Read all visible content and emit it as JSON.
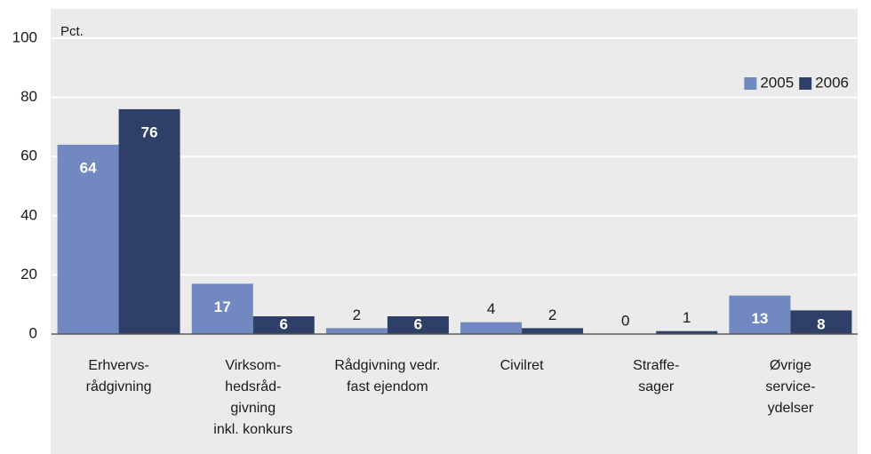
{
  "chart_data": {
    "type": "bar",
    "y_unit_label": "Pct.",
    "categories": [
      [
        "Erhvervs-",
        "rådgivning"
      ],
      [
        "Virksom-",
        "hedsråd-",
        "givning",
        "inkl. konkurs"
      ],
      [
        "Rådgivning vedr.",
        "fast ejendom"
      ],
      [
        "Civilret"
      ],
      [
        "Straffe-",
        "sager"
      ],
      [
        "Øvrige",
        "service-",
        "ydelser"
      ]
    ],
    "series": [
      {
        "name": "2005",
        "color": "#7189c0",
        "values": [
          64,
          17,
          2,
          4,
          0,
          13
        ]
      },
      {
        "name": "2006",
        "color": "#2f4068",
        "values": [
          76,
          6,
          6,
          2,
          1,
          8
        ]
      }
    ],
    "ylim": [
      0,
      100
    ],
    "yticks": [
      0,
      20,
      40,
      60,
      80,
      100
    ],
    "grid": true,
    "legend": "top-right"
  }
}
